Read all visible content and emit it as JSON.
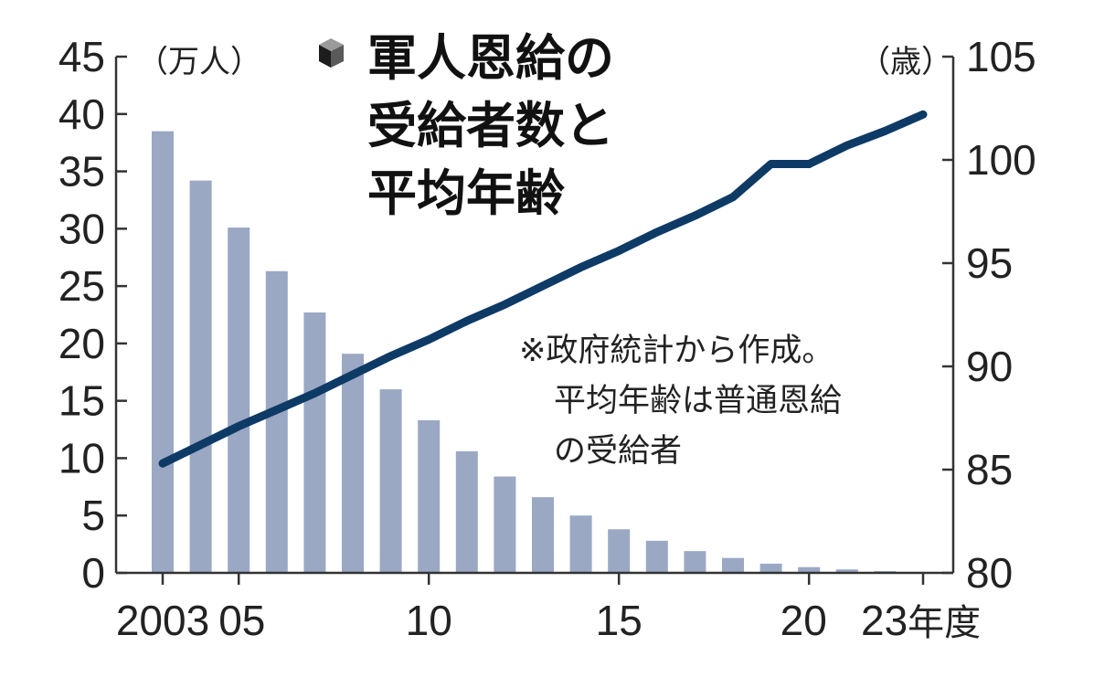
{
  "chart_data": {
    "type": "bar",
    "title_lines": [
      "軍人恩給の",
      "受給者数と",
      "平均年齢"
    ],
    "left_axis_unit": "（万人）",
    "right_axis_unit": "（歳）",
    "x_unit_suffix": "年度",
    "note_lines": [
      "※政府統計から作成。",
      "平均年齢は普通恩給",
      "の受給者"
    ],
    "x": [
      2003,
      2004,
      2005,
      2006,
      2007,
      2008,
      2009,
      2010,
      2011,
      2012,
      2013,
      2014,
      2015,
      2016,
      2017,
      2018,
      2019,
      2020,
      2021,
      2022,
      2023
    ],
    "x_tick_labels": [
      {
        "x": 2003,
        "label": "2003"
      },
      {
        "x": 2005,
        "label": "05"
      },
      {
        "x": 2010,
        "label": "10"
      },
      {
        "x": 2015,
        "label": "15"
      },
      {
        "x": 2020,
        "label": "20"
      },
      {
        "x": 2023,
        "label": "23"
      }
    ],
    "series": [
      {
        "name": "受給者数",
        "axis": "left",
        "type": "bar",
        "values": [
          38.5,
          34.2,
          30.1,
          26.3,
          22.7,
          19.1,
          16.0,
          13.3,
          10.6,
          8.4,
          6.6,
          5.0,
          3.8,
          2.8,
          1.9,
          1.3,
          0.8,
          0.5,
          0.3,
          0.15,
          0.08
        ]
      },
      {
        "name": "平均年齢",
        "axis": "right",
        "type": "line",
        "values": [
          85.3,
          86.2,
          87.1,
          87.9,
          88.7,
          89.6,
          90.5,
          91.3,
          92.2,
          93.0,
          93.9,
          94.8,
          95.6,
          96.5,
          97.3,
          98.2,
          99.8,
          99.8,
          100.7,
          101.4,
          102.2
        ]
      }
    ],
    "y_left": {
      "min": 0,
      "max": 45,
      "ticks": [
        0,
        5,
        10,
        15,
        20,
        25,
        30,
        35,
        40,
        45
      ]
    },
    "y_right": {
      "min": 80,
      "max": 105,
      "ticks": [
        80,
        85,
        90,
        95,
        100,
        105
      ]
    },
    "colors": {
      "bar": "#9aa8c4",
      "line": "#0e3a66",
      "axis": "#333333"
    },
    "title_icon": "cube-icon",
    "grid": false,
    "legend": "none"
  }
}
